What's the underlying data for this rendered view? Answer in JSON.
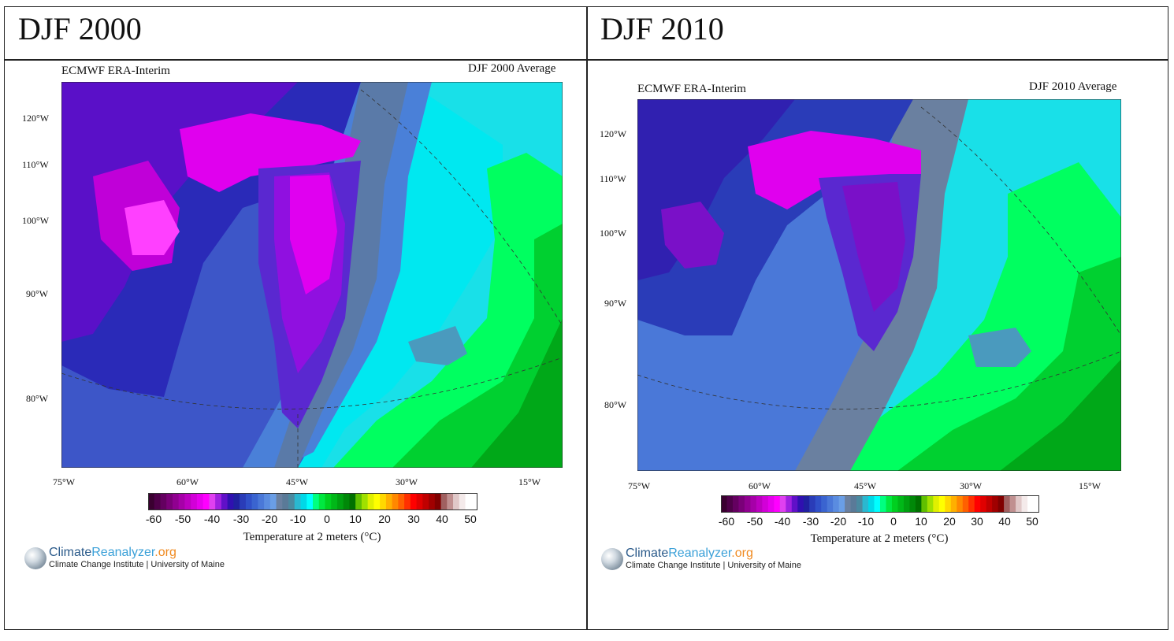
{
  "panels": [
    {
      "header": "DJF 2000",
      "source": "ECMWF ERA-Interim",
      "period": "DJF 2000 Average",
      "lat_labels": [
        "120°W",
        "110°W",
        "100°W",
        "90°W",
        "80°W"
      ],
      "lon_labels": [
        "75°W",
        "60°W",
        "45°W",
        "30°W",
        "15°W"
      ]
    },
    {
      "header": "DJF 2010",
      "source": "ECMWF ERA-Interim",
      "period": "DJF 2010 Average",
      "lat_labels": [
        "120°W",
        "110°W",
        "100°W",
        "90°W",
        "80°W"
      ],
      "lon_labels": [
        "75°W",
        "60°W",
        "45°W",
        "30°W",
        "15°W"
      ]
    }
  ],
  "colorbar": {
    "ticks": [
      "-60",
      "-50",
      "-40",
      "-30",
      "-20",
      "-10",
      "0",
      "10",
      "20",
      "30",
      "40",
      "50"
    ],
    "label": "Temperature at 2 meters (°C)",
    "colors": [
      "#3a0030",
      "#4e0048",
      "#640060",
      "#7a0078",
      "#900090",
      "#a600a8",
      "#bc00c0",
      "#d200d8",
      "#e600ee",
      "#ff00ff",
      "#e040f0",
      "#a020e0",
      "#6010c8",
      "#3010b0",
      "#2020a0",
      "#2a3cb8",
      "#3050c8",
      "#3a64d0",
      "#4a78d8",
      "#5a8ce0",
      "#6a9ee6",
      "#6a80a0",
      "#5a7a98",
      "#4a8aa0",
      "#2ab8d0",
      "#00d8e8",
      "#00ffff",
      "#00ff80",
      "#00e840",
      "#00d020",
      "#00b818",
      "#00a010",
      "#008808",
      "#007000",
      "#60c000",
      "#a0e000",
      "#e0f000",
      "#ffff00",
      "#ffd800",
      "#ffb000",
      "#ff8800",
      "#ff6000",
      "#ff3000",
      "#ff0000",
      "#e00000",
      "#c00000",
      "#a00000",
      "#800000",
      "#a06060",
      "#c09090",
      "#e0c8c8",
      "#f4eaea",
      "#ffffff",
      "#ffffff"
    ]
  },
  "logo": {
    "climate": "Climate",
    "reanalyzer": "Reanalyzer",
    "org": ".org",
    "subtitle": "Climate Change Institute | University of Maine"
  }
}
